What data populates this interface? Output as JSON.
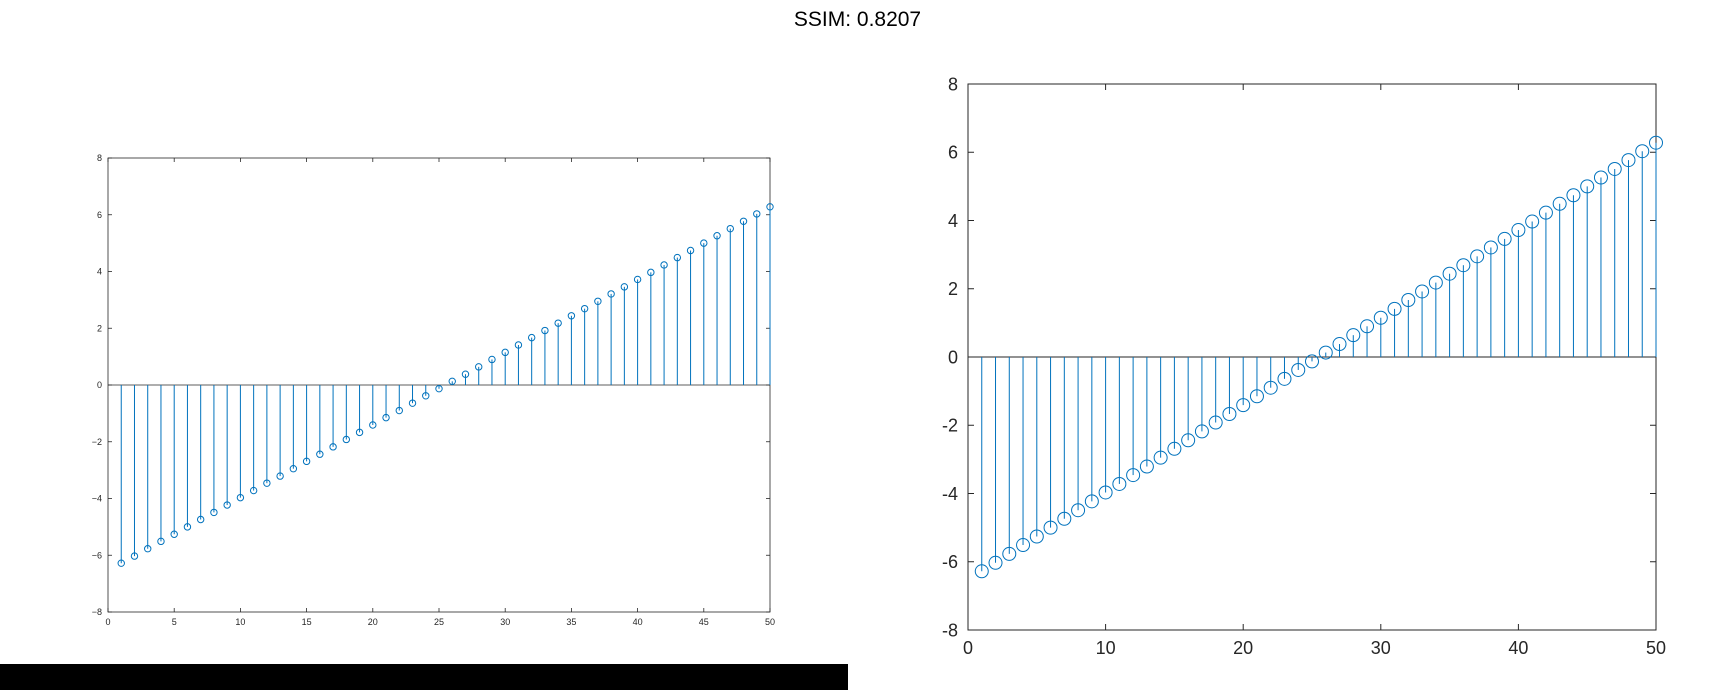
{
  "header": {
    "title": "SSIM: 0.8207"
  },
  "colors": {
    "series": "#0072BD",
    "axis": "#262626",
    "baseline": "#262626",
    "black_bar": "#000000"
  },
  "chart_data": [
    {
      "type": "stem",
      "xlim": [
        0,
        50
      ],
      "ylim": [
        -8,
        8
      ],
      "x_ticks": [
        0,
        5,
        10,
        15,
        20,
        25,
        30,
        35,
        40,
        45,
        50
      ],
      "y_ticks": [
        -8,
        -6,
        -4,
        -2,
        0,
        2,
        4,
        6,
        8
      ],
      "x_tick_labels": [
        "0",
        "5",
        "10",
        "15",
        "20",
        "25",
        "30",
        "35",
        "40",
        "45",
        "50"
      ],
      "y_tick_labels": [
        "−8",
        "−6",
        "−4",
        "−2",
        "0",
        "2",
        "4",
        "6",
        "8"
      ],
      "grid": false,
      "x": [
        1,
        2,
        3,
        4,
        5,
        6,
        7,
        8,
        9,
        10,
        11,
        12,
        13,
        14,
        15,
        16,
        17,
        18,
        19,
        20,
        21,
        22,
        23,
        24,
        25,
        26,
        27,
        28,
        29,
        30,
        31,
        32,
        33,
        34,
        35,
        36,
        37,
        38,
        39,
        40,
        41,
        42,
        43,
        44,
        45,
        46,
        47,
        48,
        49,
        50
      ],
      "values": [
        -6.28,
        -6.03,
        -5.77,
        -5.51,
        -5.26,
        -5.0,
        -4.74,
        -4.49,
        -4.23,
        -3.97,
        -3.72,
        -3.46,
        -3.21,
        -2.95,
        -2.69,
        -2.44,
        -2.18,
        -1.92,
        -1.67,
        -1.41,
        -1.15,
        -0.9,
        -0.64,
        -0.38,
        -0.13,
        0.13,
        0.38,
        0.64,
        0.9,
        1.15,
        1.41,
        1.67,
        1.92,
        2.18,
        2.44,
        2.69,
        2.95,
        3.21,
        3.46,
        3.72,
        3.97,
        4.23,
        4.49,
        4.74,
        5.0,
        5.26,
        5.51,
        5.77,
        6.03,
        6.28
      ]
    },
    {
      "type": "stem",
      "xlim": [
        0,
        50
      ],
      "ylim": [
        -8,
        8
      ],
      "x_ticks": [
        0,
        10,
        20,
        30,
        40,
        50
      ],
      "y_ticks": [
        -8,
        -6,
        -4,
        -2,
        0,
        2,
        4,
        6,
        8
      ],
      "x_tick_labels": [
        "0",
        "10",
        "20",
        "30",
        "40",
        "50"
      ],
      "y_tick_labels": [
        "-8",
        "-6",
        "-4",
        "-2",
        "0",
        "2",
        "4",
        "6",
        "8"
      ],
      "grid": false,
      "x": [
        1,
        2,
        3,
        4,
        5,
        6,
        7,
        8,
        9,
        10,
        11,
        12,
        13,
        14,
        15,
        16,
        17,
        18,
        19,
        20,
        21,
        22,
        23,
        24,
        25,
        26,
        27,
        28,
        29,
        30,
        31,
        32,
        33,
        34,
        35,
        36,
        37,
        38,
        39,
        40,
        41,
        42,
        43,
        44,
        45,
        46,
        47,
        48,
        49,
        50
      ],
      "values": [
        -6.28,
        -6.03,
        -5.77,
        -5.51,
        -5.26,
        -5.0,
        -4.74,
        -4.49,
        -4.23,
        -3.97,
        -3.72,
        -3.46,
        -3.21,
        -2.95,
        -2.69,
        -2.44,
        -2.18,
        -1.92,
        -1.67,
        -1.41,
        -1.15,
        -0.9,
        -0.64,
        -0.38,
        -0.13,
        0.13,
        0.38,
        0.64,
        0.9,
        1.15,
        1.41,
        1.67,
        1.92,
        2.18,
        2.44,
        2.69,
        2.95,
        3.21,
        3.46,
        3.72,
        3.97,
        4.23,
        4.49,
        4.74,
        5.0,
        5.26,
        5.51,
        5.77,
        6.03,
        6.28
      ]
    }
  ]
}
